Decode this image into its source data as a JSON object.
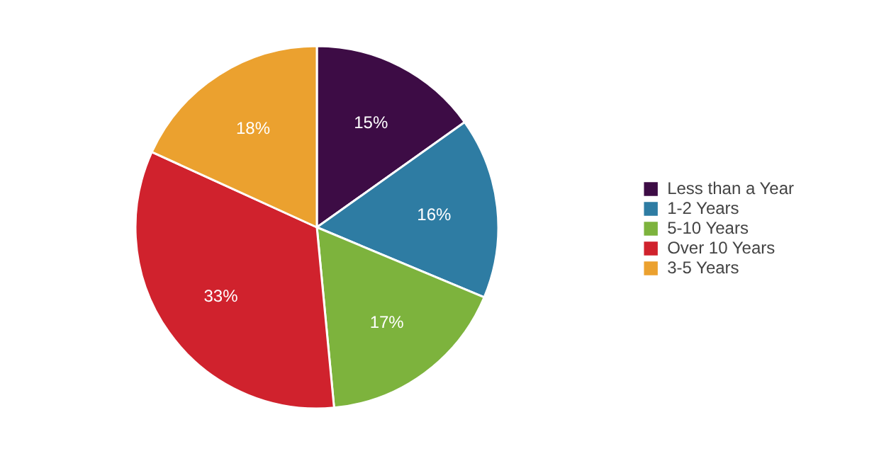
{
  "chart_data": {
    "type": "pie",
    "categories": [
      "Less than a Year",
      "1-2 Years",
      "5-10 Years",
      "Over 10 Years",
      "3-5 Years"
    ],
    "values": [
      15,
      16,
      17,
      33,
      18
    ],
    "colors": [
      "#3d0c45",
      "#2e7ca3",
      "#7db33d",
      "#d0222d",
      "#eba12f"
    ],
    "value_labels": [
      "15%",
      "16%",
      "17%",
      "33%",
      "18%"
    ],
    "legend": "right"
  }
}
